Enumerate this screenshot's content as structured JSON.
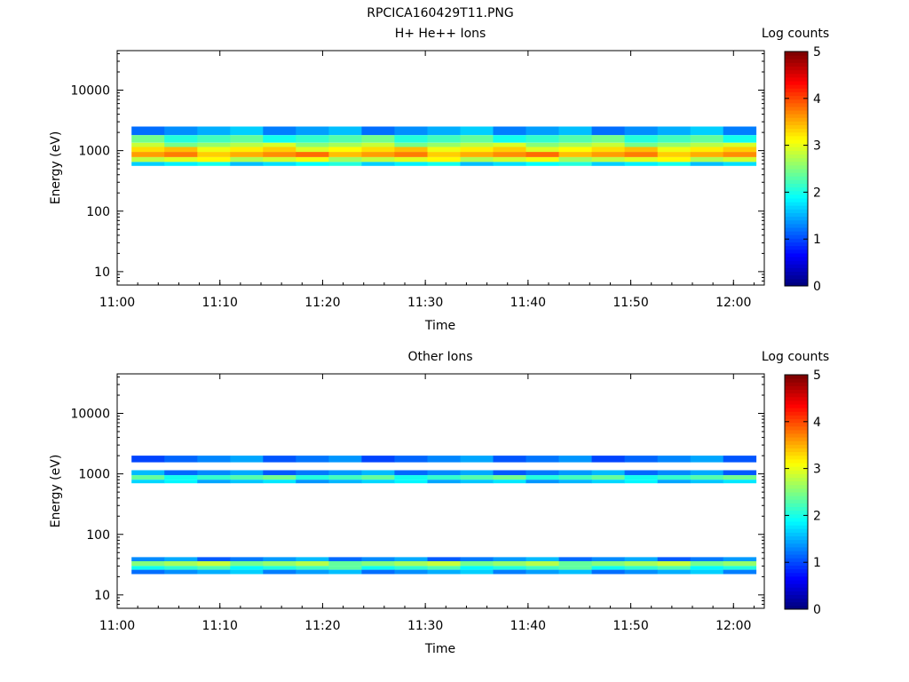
{
  "page_title": "RPCICA160429T11.PNG",
  "chart_data": [
    {
      "type": "heatmap",
      "title": "H+ He++ Ions",
      "xlabel": "Time",
      "ylabel": "Energy (eV)",
      "x_ticks": [
        "11:00",
        "11:10",
        "11:20",
        "11:30",
        "11:40",
        "11:50",
        "12:00"
      ],
      "y_ticks": [
        "10",
        "100",
        "1000",
        "10000"
      ],
      "y_scale": "log",
      "ylim": [
        6,
        45000
      ],
      "xlim": [
        "11:00",
        "12:03"
      ],
      "colorbar": {
        "label": "Log counts",
        "ticks": [
          "0",
          "1",
          "2",
          "3",
          "4",
          "5"
        ],
        "range": [
          0,
          5
        ]
      },
      "bands": [
        {
          "e_lo": 1800,
          "e_hi": 2500,
          "level": 1.4
        },
        {
          "e_lo": 1350,
          "e_hi": 1800,
          "level": 2.2
        },
        {
          "e_lo": 1150,
          "e_hi": 1350,
          "level": 2.7
        },
        {
          "e_lo": 950,
          "e_hi": 1150,
          "level": 3.2
        },
        {
          "e_lo": 780,
          "e_hi": 950,
          "level": 3.6
        },
        {
          "e_lo": 650,
          "e_hi": 780,
          "level": 2.9
        },
        {
          "e_lo": 560,
          "e_hi": 650,
          "level": 1.8
        }
      ]
    },
    {
      "type": "heatmap",
      "title": "Other Ions",
      "xlabel": "Time",
      "ylabel": "Energy (eV)",
      "x_ticks": [
        "11:00",
        "11:10",
        "11:20",
        "11:30",
        "11:40",
        "11:50",
        "12:00"
      ],
      "y_ticks": [
        "10",
        "100",
        "1000",
        "10000"
      ],
      "y_scale": "log",
      "ylim": [
        6,
        45000
      ],
      "xlim": [
        "11:00",
        "12:03"
      ],
      "colorbar": {
        "label": "Log counts",
        "ticks": [
          "0",
          "1",
          "2",
          "3",
          "4",
          "5"
        ],
        "range": [
          0,
          5
        ]
      },
      "bands": [
        {
          "e_lo": 1550,
          "e_hi": 2000,
          "level": 1.2
        },
        {
          "e_lo": 950,
          "e_hi": 1150,
          "level": 1.3
        },
        {
          "e_lo": 800,
          "e_hi": 950,
          "level": 2.2
        },
        {
          "e_lo": 700,
          "e_hi": 800,
          "level": 1.6
        },
        {
          "e_lo": 36,
          "e_hi": 42,
          "level": 1.3
        },
        {
          "e_lo": 30,
          "e_hi": 36,
          "level": 2.6
        },
        {
          "e_lo": 26,
          "e_hi": 30,
          "level": 2.1
        },
        {
          "e_lo": 22,
          "e_hi": 26,
          "level": 1.4
        }
      ]
    }
  ]
}
